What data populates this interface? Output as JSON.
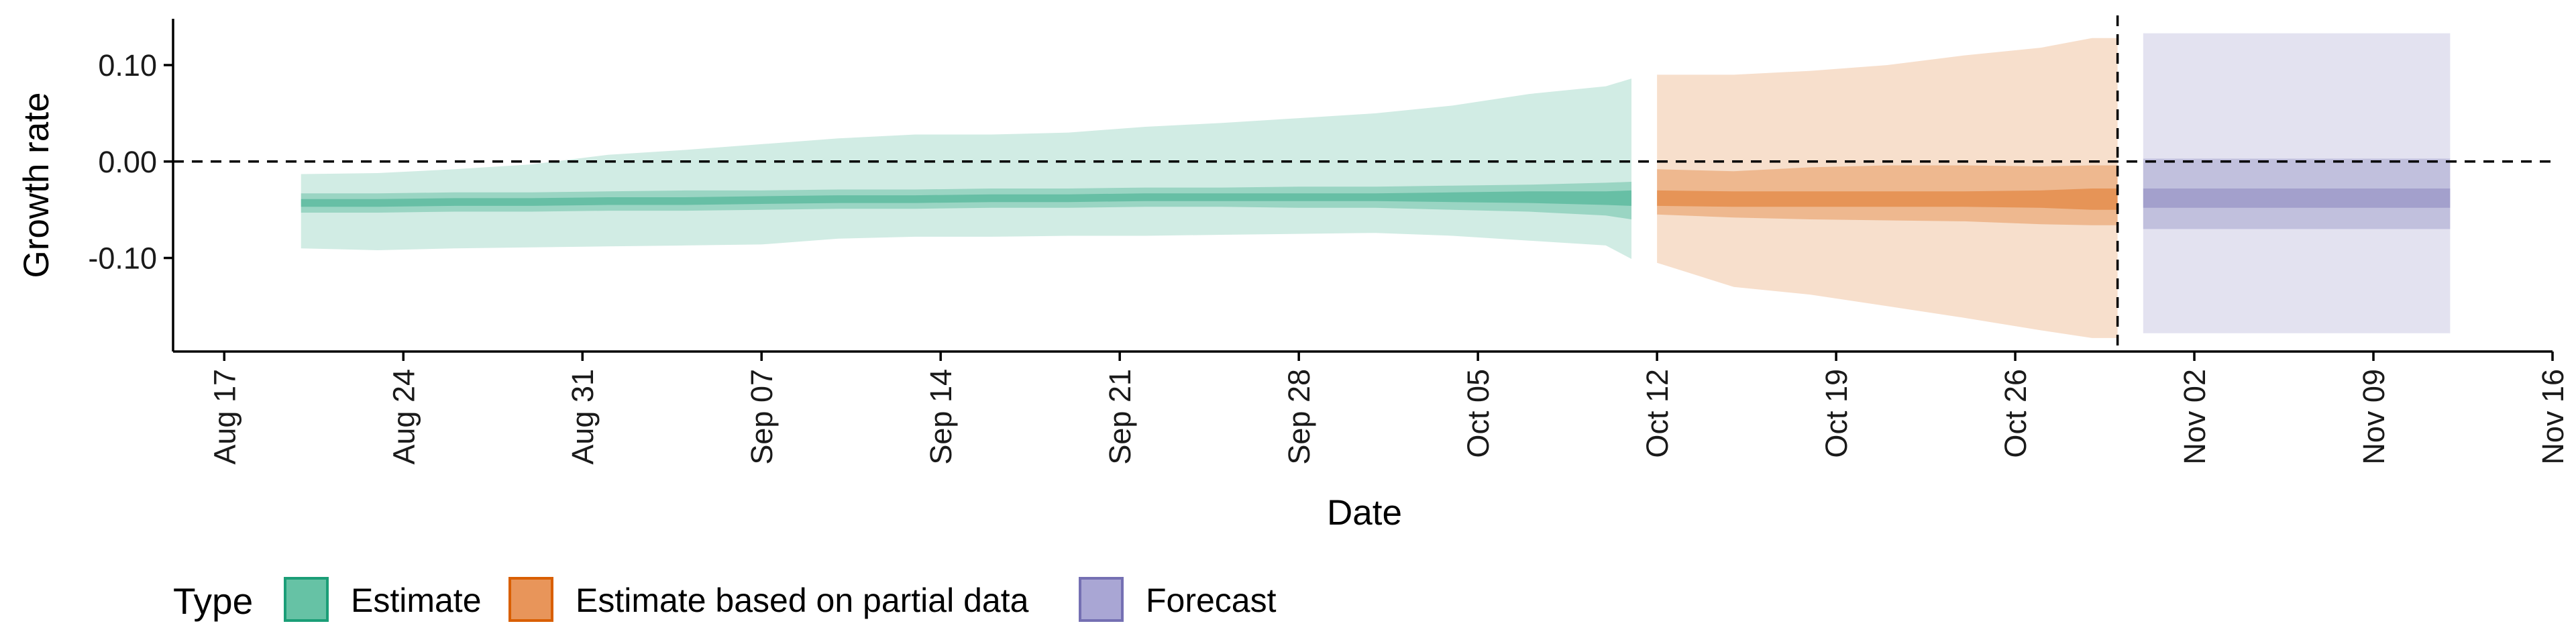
{
  "chart_data": {
    "type": "area",
    "xlabel": "Date",
    "ylabel": "Growth rate",
    "x_range": [
      "2020-08-15",
      "2020-11-16"
    ],
    "ylim": [
      -0.197,
      0.148
    ],
    "y_ticks": [
      {
        "value": 0.1,
        "label": "0.10"
      },
      {
        "value": 0.0,
        "label": "0.00"
      },
      {
        "value": -0.1,
        "label": "-0.10"
      }
    ],
    "x_ticks": [
      {
        "date": "2020-08-17",
        "label": "Aug 17"
      },
      {
        "date": "2020-08-24",
        "label": "Aug 24"
      },
      {
        "date": "2020-08-31",
        "label": "Aug 31"
      },
      {
        "date": "2020-09-07",
        "label": "Sep 07"
      },
      {
        "date": "2020-09-14",
        "label": "Sep 14"
      },
      {
        "date": "2020-09-21",
        "label": "Sep 21"
      },
      {
        "date": "2020-09-28",
        "label": "Sep 28"
      },
      {
        "date": "2020-10-05",
        "label": "Oct 05"
      },
      {
        "date": "2020-10-12",
        "label": "Oct 12"
      },
      {
        "date": "2020-10-19",
        "label": "Oct 19"
      },
      {
        "date": "2020-10-26",
        "label": "Oct 26"
      },
      {
        "date": "2020-11-02",
        "label": "Nov 02"
      },
      {
        "date": "2020-11-09",
        "label": "Nov 09"
      },
      {
        "date": "2020-11-16",
        "label": "Nov 16"
      }
    ],
    "reference_lines": {
      "horizontal_y": 0.0,
      "vertical_date": "2020-10-30"
    },
    "legend": {
      "title": "Type",
      "position": "bottom",
      "entries": [
        {
          "label": "Estimate",
          "fill": "#66c2a5",
          "border": "#1b9e77"
        },
        {
          "label": "Estimate based on partial data",
          "fill": "#e8955a",
          "border": "#d95f02"
        },
        {
          "label": "Forecast",
          "fill": "#a9a6d4",
          "border": "#7570b3"
        }
      ]
    },
    "series": [
      {
        "name": "Estimate",
        "colors": {
          "outer": "#1b9e77",
          "mid": "#1b9e77",
          "inner": "#1b9e77"
        },
        "opacity": {
          "outer": 0.2,
          "mid": 0.3,
          "inner": 0.4
        },
        "points": [
          {
            "date": "2020-08-20",
            "median": -0.043,
            "inner": [
              -0.047,
              -0.039
            ],
            "mid": [
              -0.053,
              -0.033
            ],
            "outer": [
              -0.09,
              -0.013
            ]
          },
          {
            "date": "2020-08-23",
            "median": -0.043,
            "inner": [
              -0.047,
              -0.039
            ],
            "mid": [
              -0.053,
              -0.033
            ],
            "outer": [
              -0.092,
              -0.012
            ]
          },
          {
            "date": "2020-08-26",
            "median": -0.042,
            "inner": [
              -0.046,
              -0.038
            ],
            "mid": [
              -0.052,
              -0.032
            ],
            "outer": [
              -0.09,
              -0.008
            ]
          },
          {
            "date": "2020-08-29",
            "median": -0.042,
            "inner": [
              -0.046,
              -0.038
            ],
            "mid": [
              -0.052,
              -0.032
            ],
            "outer": [
              -0.089,
              -0.003
            ]
          },
          {
            "date": "2020-09-01",
            "median": -0.041,
            "inner": [
              -0.045,
              -0.037
            ],
            "mid": [
              -0.051,
              -0.031
            ],
            "outer": [
              -0.088,
              0.007
            ]
          },
          {
            "date": "2020-09-04",
            "median": -0.041,
            "inner": [
              -0.045,
              -0.037
            ],
            "mid": [
              -0.051,
              -0.03
            ],
            "outer": [
              -0.087,
              0.012
            ]
          },
          {
            "date": "2020-09-07",
            "median": -0.04,
            "inner": [
              -0.044,
              -0.036
            ],
            "mid": [
              -0.05,
              -0.03
            ],
            "outer": [
              -0.086,
              0.018
            ]
          },
          {
            "date": "2020-09-10",
            "median": -0.039,
            "inner": [
              -0.043,
              -0.035
            ],
            "mid": [
              -0.049,
              -0.029
            ],
            "outer": [
              -0.08,
              0.024
            ]
          },
          {
            "date": "2020-09-13",
            "median": -0.039,
            "inner": [
              -0.043,
              -0.035
            ],
            "mid": [
              -0.049,
              -0.029
            ],
            "outer": [
              -0.078,
              0.028
            ]
          },
          {
            "date": "2020-09-16",
            "median": -0.038,
            "inner": [
              -0.042,
              -0.034
            ],
            "mid": [
              -0.048,
              -0.028
            ],
            "outer": [
              -0.078,
              0.028
            ]
          },
          {
            "date": "2020-09-19",
            "median": -0.038,
            "inner": [
              -0.042,
              -0.034
            ],
            "mid": [
              -0.048,
              -0.028
            ],
            "outer": [
              -0.077,
              0.03
            ]
          },
          {
            "date": "2020-09-22",
            "median": -0.037,
            "inner": [
              -0.041,
              -0.033
            ],
            "mid": [
              -0.047,
              -0.027
            ],
            "outer": [
              -0.077,
              0.036
            ]
          },
          {
            "date": "2020-09-25",
            "median": -0.037,
            "inner": [
              -0.041,
              -0.033
            ],
            "mid": [
              -0.047,
              -0.027
            ],
            "outer": [
              -0.076,
              0.04
            ]
          },
          {
            "date": "2020-09-28",
            "median": -0.037,
            "inner": [
              -0.041,
              -0.033
            ],
            "mid": [
              -0.048,
              -0.026
            ],
            "outer": [
              -0.075,
              0.045
            ]
          },
          {
            "date": "2020-10-01",
            "median": -0.037,
            "inner": [
              -0.041,
              -0.033
            ],
            "mid": [
              -0.048,
              -0.026
            ],
            "outer": [
              -0.074,
              0.05
            ]
          },
          {
            "date": "2020-10-04",
            "median": -0.037,
            "inner": [
              -0.042,
              -0.032
            ],
            "mid": [
              -0.05,
              -0.025
            ],
            "outer": [
              -0.077,
              0.058
            ]
          },
          {
            "date": "2020-10-07",
            "median": -0.037,
            "inner": [
              -0.043,
              -0.031
            ],
            "mid": [
              -0.052,
              -0.024
            ],
            "outer": [
              -0.082,
              0.07
            ]
          },
          {
            "date": "2020-10-10",
            "median": -0.038,
            "inner": [
              -0.045,
              -0.031
            ],
            "mid": [
              -0.056,
              -0.022
            ],
            "outer": [
              -0.087,
              0.078
            ]
          },
          {
            "date": "2020-10-11",
            "median": -0.038,
            "inner": [
              -0.046,
              -0.03
            ],
            "mid": [
              -0.06,
              -0.021
            ],
            "outer": [
              -0.101,
              0.086
            ]
          }
        ]
      },
      {
        "name": "Estimate based on partial data",
        "colors": {
          "outer": "#d95f02",
          "mid": "#d95f02",
          "inner": "#d95f02"
        },
        "opacity": {
          "outer": 0.2,
          "mid": 0.3,
          "inner": 0.4
        },
        "points": [
          {
            "date": "2020-10-12",
            "median": -0.038,
            "inner": [
              -0.046,
              -0.03
            ],
            "mid": [
              -0.055,
              -0.008
            ],
            "outer": [
              -0.105,
              0.09
            ]
          },
          {
            "date": "2020-10-15",
            "median": -0.039,
            "inner": [
              -0.047,
              -0.031
            ],
            "mid": [
              -0.058,
              -0.01
            ],
            "outer": [
              -0.13,
              0.09
            ]
          },
          {
            "date": "2020-10-18",
            "median": -0.039,
            "inner": [
              -0.047,
              -0.031
            ],
            "mid": [
              -0.06,
              -0.006
            ],
            "outer": [
              -0.138,
              0.094
            ]
          },
          {
            "date": "2020-10-21",
            "median": -0.039,
            "inner": [
              -0.047,
              -0.031
            ],
            "mid": [
              -0.061,
              -0.004
            ],
            "outer": [
              -0.15,
              0.1
            ]
          },
          {
            "date": "2020-10-24",
            "median": -0.039,
            "inner": [
              -0.047,
              -0.031
            ],
            "mid": [
              -0.062,
              -0.004
            ],
            "outer": [
              -0.162,
              0.11
            ]
          },
          {
            "date": "2020-10-27",
            "median": -0.039,
            "inner": [
              -0.048,
              -0.03
            ],
            "mid": [
              -0.065,
              -0.005
            ],
            "outer": [
              -0.175,
              0.118
            ]
          },
          {
            "date": "2020-10-29",
            "median": -0.039,
            "inner": [
              -0.05,
              -0.028
            ],
            "mid": [
              -0.066,
              -0.004
            ],
            "outer": [
              -0.183,
              0.128
            ]
          },
          {
            "date": "2020-10-30",
            "median": -0.039,
            "inner": [
              -0.05,
              -0.028
            ],
            "mid": [
              -0.066,
              -0.004
            ],
            "outer": [
              -0.183,
              0.128
            ]
          }
        ]
      },
      {
        "name": "Forecast",
        "colors": {
          "outer": "#7570b3",
          "mid": "#7570b3",
          "inner": "#7570b3"
        },
        "opacity": {
          "outer": 0.2,
          "mid": 0.3,
          "inner": 0.4
        },
        "points": [
          {
            "date": "2020-10-31",
            "median": -0.038,
            "inner": [
              -0.048,
              -0.028
            ],
            "mid": [
              -0.07,
              0.003
            ],
            "outer": [
              -0.178,
              0.133
            ]
          },
          {
            "date": "2020-11-12",
            "median": -0.038,
            "inner": [
              -0.048,
              -0.028
            ],
            "mid": [
              -0.07,
              0.003
            ],
            "outer": [
              -0.178,
              0.133
            ]
          }
        ]
      }
    ]
  }
}
